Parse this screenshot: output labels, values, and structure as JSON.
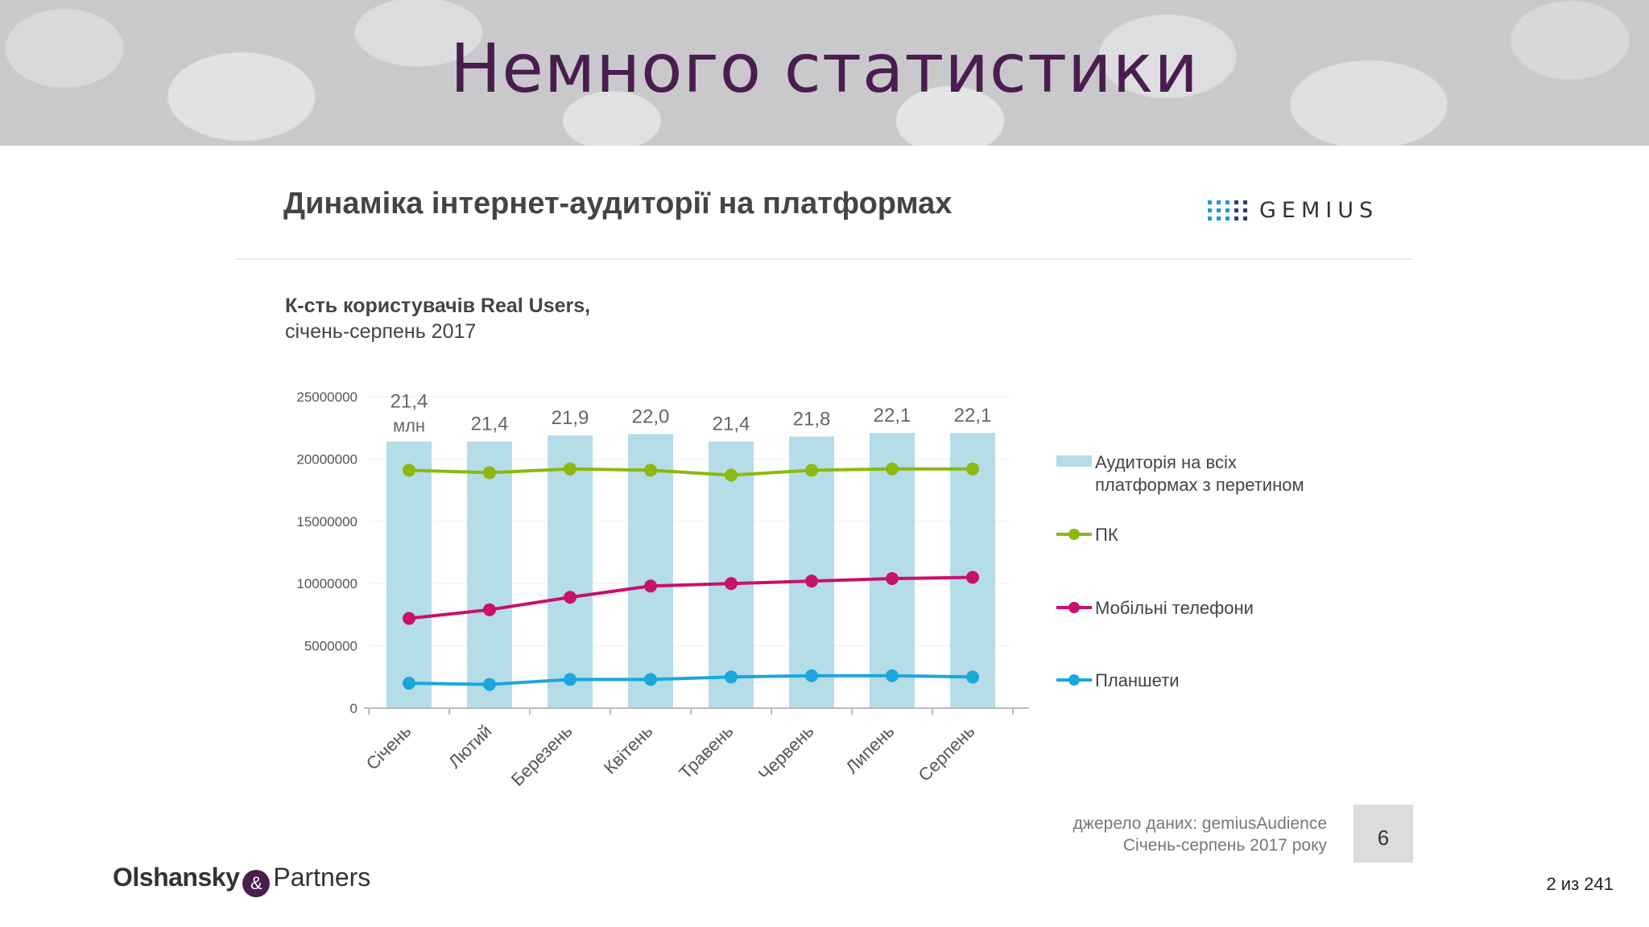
{
  "slide": {
    "heading": "Немного статистики",
    "card_title": "Динаміка інтернет-аудиторії на платформах",
    "brand": "GEMIUS",
    "subtitle_bold": "К-сть користувачів Real Users,",
    "subtitle_rest": "січень-серпень 2017",
    "source_line1": "джерело даних: gemiusAudience",
    "source_line2": "Січень-серпень 2017 року",
    "slide_number": "6",
    "company_name_1": "Olshansky",
    "company_amp": "&",
    "company_name_2": "Partners",
    "page_counter": "2 из 241"
  },
  "chart_data": {
    "type": "bar",
    "title": "К-сть користувачів Real Users, січень-серпень 2017",
    "categories": [
      "Січень",
      "Лютий",
      "Березень",
      "Квітень",
      "Травень",
      "Червень",
      "Липень",
      "Серпень"
    ],
    "ylim": [
      0,
      25000000
    ],
    "yticks": [
      "25000000",
      "20000000",
      "15000000",
      "10000000",
      "5000000",
      "0"
    ],
    "ytick_values": [
      25000000,
      20000000,
      15000000,
      10000000,
      5000000,
      0
    ],
    "bar_series": {
      "name": "Аудиторія на всіх платформах з перетином",
      "color": "#b4dde7",
      "values": [
        21400000,
        21400000,
        21900000,
        22000000,
        21400000,
        21800000,
        22100000,
        22100000
      ],
      "labels": [
        "21,4",
        "21,4",
        "21,9",
        "22,0",
        "21,4",
        "21,8",
        "22,1",
        "22,1"
      ],
      "first_label_unit": "млн"
    },
    "series": [
      {
        "name": "ПК",
        "color": "#8cb80f",
        "values": [
          19100000,
          18900000,
          19200000,
          19100000,
          18700000,
          19100000,
          19200000,
          19200000
        ]
      },
      {
        "name": "Мобільні телефони",
        "color": "#c8106d",
        "values": [
          7200000,
          7900000,
          8900000,
          9800000,
          10000000,
          10200000,
          10400000,
          10500000
        ]
      },
      {
        "name": "Планшети",
        "color": "#1aa7dd",
        "values": [
          2000000,
          1900000,
          2300000,
          2300000,
          2500000,
          2600000,
          2600000,
          2500000
        ]
      }
    ],
    "legend": [
      "Аудиторія на всіх",
      "платформах з перетином",
      "ПК",
      "Мобільні телефони",
      "Планшети"
    ],
    "legend_position": "right"
  }
}
